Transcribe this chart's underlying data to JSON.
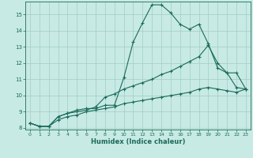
{
  "title": "",
  "xlabel": "Humidex (Indice chaleur)",
  "ylabel": "",
  "xlim": [
    -0.5,
    23.5
  ],
  "ylim": [
    7.9,
    15.8
  ],
  "xticks": [
    0,
    1,
    2,
    3,
    4,
    5,
    6,
    7,
    8,
    9,
    10,
    11,
    12,
    13,
    14,
    15,
    16,
    17,
    18,
    19,
    20,
    21,
    22,
    23
  ],
  "yticks": [
    8,
    9,
    10,
    11,
    12,
    13,
    14,
    15
  ],
  "bg_color": "#c8eae4",
  "grid_color": "#a0ccc4",
  "line_color": "#1a6b5a",
  "line1_x": [
    0,
    1,
    2,
    3,
    4,
    5,
    6,
    7,
    8,
    9,
    10,
    11,
    12,
    13,
    14,
    15,
    16,
    17,
    18,
    19,
    20,
    21,
    22,
    23
  ],
  "line1_y": [
    8.3,
    8.1,
    8.1,
    8.7,
    8.9,
    9.1,
    9.2,
    9.2,
    9.4,
    9.4,
    11.1,
    13.3,
    14.5,
    15.6,
    15.6,
    15.1,
    14.4,
    14.1,
    14.4,
    13.2,
    11.7,
    11.4,
    11.4,
    10.4
  ],
  "line2_x": [
    0,
    1,
    2,
    3,
    4,
    5,
    6,
    7,
    8,
    9,
    10,
    11,
    12,
    13,
    14,
    15,
    16,
    17,
    18,
    19,
    20,
    21,
    22,
    23
  ],
  "line2_y": [
    8.3,
    8.1,
    8.1,
    8.7,
    8.9,
    9.0,
    9.1,
    9.3,
    9.9,
    10.1,
    10.4,
    10.6,
    10.8,
    11.0,
    11.3,
    11.5,
    11.8,
    12.1,
    12.4,
    13.1,
    12.0,
    11.4,
    10.5,
    10.4
  ],
  "line3_x": [
    0,
    1,
    2,
    3,
    4,
    5,
    6,
    7,
    8,
    9,
    10,
    11,
    12,
    13,
    14,
    15,
    16,
    17,
    18,
    19,
    20,
    21,
    22,
    23
  ],
  "line3_y": [
    8.3,
    8.1,
    8.1,
    8.5,
    8.7,
    8.8,
    9.0,
    9.1,
    9.2,
    9.3,
    9.5,
    9.6,
    9.7,
    9.8,
    9.9,
    10.0,
    10.1,
    10.2,
    10.4,
    10.5,
    10.4,
    10.3,
    10.2,
    10.4
  ]
}
